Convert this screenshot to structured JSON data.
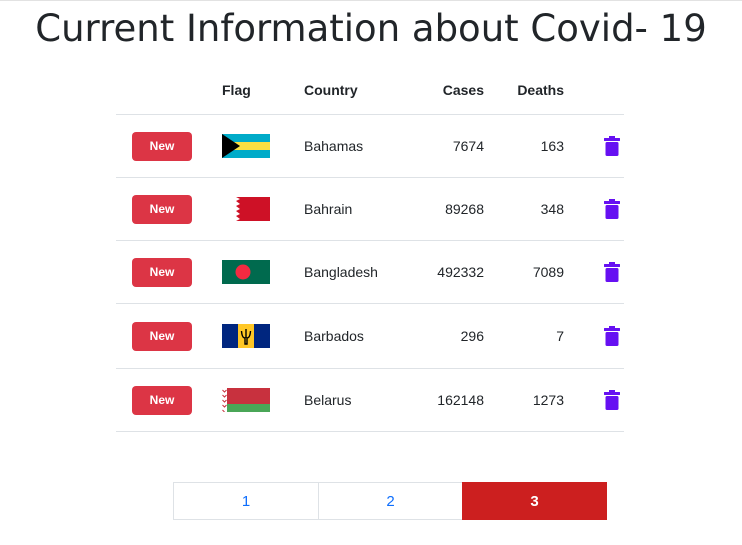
{
  "title": "Current Information about Covid- 19",
  "table": {
    "headers": {
      "flag": "Flag",
      "country": "Country",
      "cases": "Cases",
      "deaths": "Deaths"
    },
    "button_label": "New",
    "rows": [
      {
        "country": "Bahamas",
        "cases": "7674",
        "deaths": "163",
        "flag_icon": "bahamas-flag-icon"
      },
      {
        "country": "Bahrain",
        "cases": "89268",
        "deaths": "348",
        "flag_icon": "bahrain-flag-icon"
      },
      {
        "country": "Bangladesh",
        "cases": "492332",
        "deaths": "7089",
        "flag_icon": "bangladesh-flag-icon"
      },
      {
        "country": "Barbados",
        "cases": "296",
        "deaths": "7",
        "flag_icon": "barbados-flag-icon"
      },
      {
        "country": "Belarus",
        "cases": "162148",
        "deaths": "1273",
        "flag_icon": "belarus-flag-icon"
      }
    ]
  },
  "pagination": {
    "pages": [
      "1",
      "2",
      "3"
    ],
    "active": "3"
  },
  "colors": {
    "new_button": "#dc3545",
    "trash_icon": "#6610f2",
    "active_page": "#cc1f1f",
    "page_link": "#0d6efd"
  }
}
